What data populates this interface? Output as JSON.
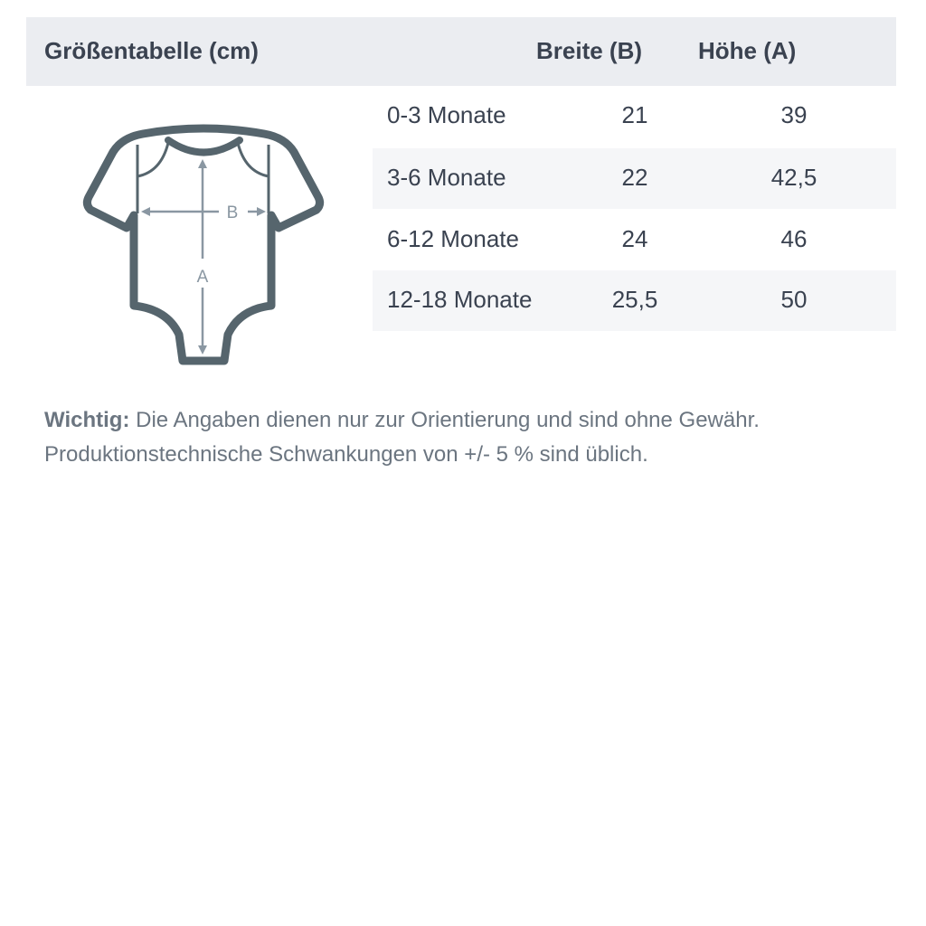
{
  "header": {
    "title": "Größentabelle (cm)",
    "col_width": "Breite (B)",
    "col_height": "Höhe (A)"
  },
  "rows": [
    {
      "size": "0-3 Monate",
      "width": "21",
      "height": "39"
    },
    {
      "size": "3-6 Monate",
      "width": "22",
      "height": "42,5"
    },
    {
      "size": "6-12 Monate",
      "width": "24",
      "height": "46"
    },
    {
      "size": "12-18 Monate",
      "width": "25,5",
      "height": "50"
    }
  ],
  "diagram": {
    "label_b": "B",
    "label_a": "A",
    "outline_color": "#56656d",
    "arrow_color": "#8a97a2"
  },
  "note": {
    "label": "Wichtig:",
    "line1": "Die Angaben dienen nur zur Orientierung und sind ohne Gewähr.",
    "line2": "Produktionstechnische Schwankungen von +/- 5 % sind üblich."
  }
}
